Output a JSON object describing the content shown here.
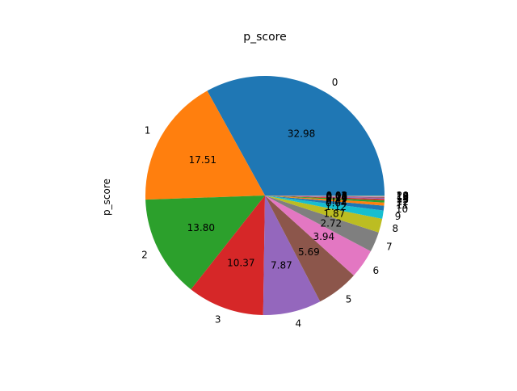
{
  "chart_data": {
    "type": "pie",
    "title": "p_score",
    "ylabel": "p_score",
    "xlabel": "",
    "start_angle_deg": 0,
    "counterclockwise": true,
    "value_format": "%.2f",
    "categories": [
      "0",
      "1",
      "2",
      "3",
      "4",
      "5",
      "6",
      "7",
      "8",
      "9",
      "10",
      "11",
      "12",
      "13",
      "14",
      "15",
      "16",
      "17",
      "18",
      "19",
      "20"
    ],
    "values": [
      32.98,
      17.51,
      13.8,
      10.37,
      7.87,
      5.69,
      3.94,
      2.72,
      1.87,
      1.12,
      0.64,
      0.42,
      0.29,
      0.2,
      0.14,
      0.1,
      0.07,
      0.05,
      0.04,
      0.03,
      0.02
    ],
    "colors": [
      "#1f77b4",
      "#ff7f0e",
      "#2ca02c",
      "#d62728",
      "#9467bd",
      "#8c564b",
      "#e377c2",
      "#7f7f7f",
      "#bcbd22",
      "#17becf",
      "#1f77b4",
      "#ff7f0e",
      "#2ca02c",
      "#d62728",
      "#9467bd",
      "#8c564b",
      "#e377c2",
      "#7f7f7f",
      "#bcbd22",
      "#17becf",
      "#1f77b4"
    ],
    "legend": "none",
    "grid": false
  }
}
